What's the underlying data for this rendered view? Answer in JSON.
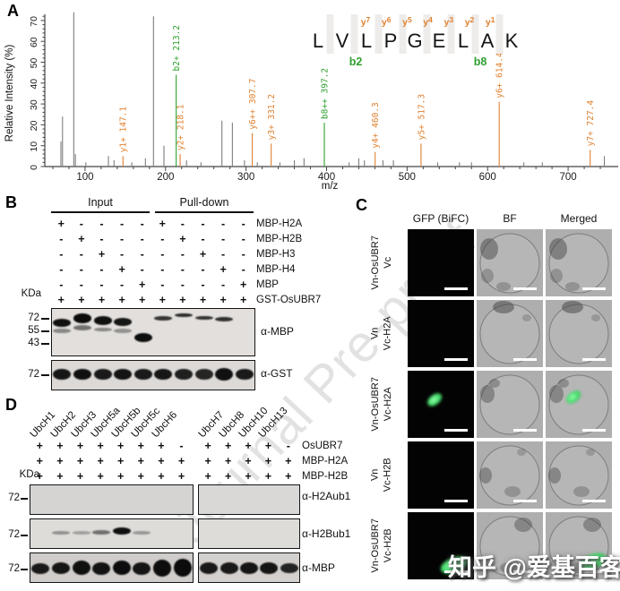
{
  "figure": {
    "watermark_journal": "Journal Pre-proof",
    "watermark_zhihu": "知乎 @爱基百客"
  },
  "panelA": {
    "label": "A",
    "chart_data": {
      "type": "bar",
      "subtype": "ms2-fragmentation-spectrum",
      "xlabel": "m/z",
      "ylabel": "Relative Intensity (%)",
      "xlim": [
        50,
        760
      ],
      "ylim": [
        0,
        75
      ],
      "x_ticks": [
        100,
        200,
        300,
        400,
        500,
        600,
        700
      ],
      "y_ticks": [
        0,
        10,
        20,
        30,
        40,
        50,
        60,
        70
      ],
      "peptide": {
        "residues": [
          "L",
          "V",
          "L",
          "P",
          "G",
          "E",
          "L",
          "A",
          "K"
        ],
        "y_ion_labels": [
          "y7",
          "y6",
          "y5",
          "y4",
          "y3",
          "y2",
          "y1"
        ],
        "b_ion_labels": [
          "b2",
          "b8"
        ]
      },
      "labeled_peaks": [
        {
          "ion": "y1+",
          "mz": 147.1,
          "intensity": 5,
          "series": "y"
        },
        {
          "ion": "b2+",
          "mz": 213.2,
          "intensity": 44,
          "series": "b"
        },
        {
          "ion": "y2+",
          "mz": 218.1,
          "intensity": 6,
          "series": "y"
        },
        {
          "ion": "y6++",
          "mz": 307.7,
          "intensity": 16,
          "series": "y"
        },
        {
          "ion": "y3+",
          "mz": 331.2,
          "intensity": 11,
          "series": "y"
        },
        {
          "ion": "b8++",
          "mz": 397.2,
          "intensity": 21,
          "series": "b"
        },
        {
          "ion": "y4+",
          "mz": 460.3,
          "intensity": 7,
          "series": "y"
        },
        {
          "ion": "y5+",
          "mz": 517.3,
          "intensity": 11,
          "series": "y"
        },
        {
          "ion": "y6+",
          "mz": 614.4,
          "intensity": 31,
          "series": "y"
        },
        {
          "ion": "y7+",
          "mz": 727.4,
          "intensity": 8,
          "series": "y"
        }
      ],
      "background_peaks": [
        [
          70,
          12
        ],
        [
          72,
          24
        ],
        [
          86,
          74
        ],
        [
          88,
          6
        ],
        [
          101,
          2
        ],
        [
          129,
          5
        ],
        [
          136,
          3
        ],
        [
          158,
          2
        ],
        [
          175,
          4
        ],
        [
          185,
          72
        ],
        [
          198,
          10
        ],
        [
          226,
          3
        ],
        [
          244,
          2
        ],
        [
          270,
          22
        ],
        [
          283,
          21
        ],
        [
          298,
          3
        ],
        [
          314,
          2
        ],
        [
          342,
          2
        ],
        [
          360,
          3
        ],
        [
          372,
          4
        ],
        [
          428,
          2
        ],
        [
          440,
          4
        ],
        [
          447,
          3
        ],
        [
          470,
          3
        ],
        [
          483,
          3
        ],
        [
          538,
          2
        ],
        [
          565,
          2
        ],
        [
          580,
          2
        ],
        [
          645,
          2
        ],
        [
          668,
          2
        ],
        [
          745,
          5
        ]
      ],
      "colors": {
        "y_series": "#e0812f",
        "b_series": "#2fa02f",
        "background": "#7d7d7d"
      }
    }
  },
  "panelB": {
    "label": "B",
    "group_headers": [
      "Input",
      "Pull-down"
    ],
    "kda_label": "KDa",
    "condition_rows": [
      {
        "label": "MBP-H2A",
        "values": [
          "+",
          "-",
          "-",
          "-",
          "-",
          "+",
          "-",
          "-",
          "-",
          "-"
        ]
      },
      {
        "label": "MBP-H2B",
        "values": [
          "-",
          "+",
          "-",
          "-",
          "-",
          "-",
          "+",
          "-",
          "-",
          "-"
        ]
      },
      {
        "label": "MBP-H3",
        "values": [
          "-",
          "-",
          "+",
          "-",
          "-",
          "-",
          "-",
          "+",
          "-",
          "-"
        ]
      },
      {
        "label": "MBP-H4",
        "values": [
          "-",
          "-",
          "-",
          "+",
          "-",
          "-",
          "-",
          "-",
          "+",
          "-"
        ]
      },
      {
        "label": "MBP",
        "values": [
          "-",
          "-",
          "-",
          "-",
          "+",
          "-",
          "-",
          "-",
          "-",
          "+"
        ]
      },
      {
        "label": "GST-OsUBR7",
        "values": [
          "+",
          "+",
          "+",
          "+",
          "+",
          "+",
          "+",
          "+",
          "+",
          "+"
        ]
      }
    ],
    "blots": [
      {
        "antibody": "α-MBP",
        "markers": [
          "72",
          "55",
          "43"
        ],
        "bands": [
          {
            "lane": 1,
            "y": 0.21,
            "h": 0.17,
            "o": 0.95
          },
          {
            "lane": 1,
            "y": 0.43,
            "h": 0.09,
            "o": 0.4
          },
          {
            "lane": 2,
            "y": 0.1,
            "h": 0.2,
            "o": 0.97
          },
          {
            "lane": 2,
            "y": 0.35,
            "h": 0.11,
            "o": 0.5
          },
          {
            "lane": 3,
            "y": 0.16,
            "h": 0.18,
            "o": 0.95
          },
          {
            "lane": 3,
            "y": 0.4,
            "h": 0.09,
            "o": 0.4
          },
          {
            "lane": 4,
            "y": 0.2,
            "h": 0.17,
            "o": 0.92
          },
          {
            "lane": 4,
            "y": 0.43,
            "h": 0.09,
            "o": 0.35
          },
          {
            "lane": 5,
            "y": 0.52,
            "h": 0.2,
            "o": 0.96
          },
          {
            "lane": 6,
            "y": 0.16,
            "h": 0.09,
            "o": 0.78
          },
          {
            "lane": 7,
            "y": 0.09,
            "h": 0.09,
            "o": 0.82
          },
          {
            "lane": 8,
            "y": 0.15,
            "h": 0.09,
            "o": 0.8
          },
          {
            "lane": 9,
            "y": 0.17,
            "h": 0.1,
            "o": 0.8
          }
        ]
      },
      {
        "antibody": "α-GST",
        "markers": [
          "72"
        ],
        "bands": [
          {
            "lane": 1,
            "y": 0.27,
            "h": 0.4,
            "o": 0.92
          },
          {
            "lane": 2,
            "y": 0.27,
            "h": 0.4,
            "o": 0.95
          },
          {
            "lane": 3,
            "y": 0.27,
            "h": 0.4,
            "o": 0.9
          },
          {
            "lane": 4,
            "y": 0.27,
            "h": 0.4,
            "o": 0.93
          },
          {
            "lane": 5,
            "y": 0.27,
            "h": 0.4,
            "o": 0.9
          },
          {
            "lane": 6,
            "y": 0.27,
            "h": 0.4,
            "o": 0.92
          },
          {
            "lane": 7,
            "y": 0.27,
            "h": 0.4,
            "o": 0.88
          },
          {
            "lane": 8,
            "y": 0.27,
            "h": 0.4,
            "o": 0.85
          },
          {
            "lane": 9,
            "y": 0.24,
            "h": 0.44,
            "o": 0.95
          },
          {
            "lane": 10,
            "y": 0.27,
            "h": 0.4,
            "o": 0.9
          }
        ]
      }
    ]
  },
  "panelC": {
    "label": "C",
    "column_headers": [
      "GFP (BiFC)",
      "BF",
      "Merged"
    ],
    "colors": {
      "gfp_green": "#4ce472"
    },
    "rows": [
      {
        "construct_top": "Vn-OsUBR7",
        "construct_bottom": "Vc",
        "bifc_positive": false
      },
      {
        "construct_top": "Vn",
        "construct_bottom": "Vc-H2A",
        "bifc_positive": false
      },
      {
        "construct_top": "Vn-OsUBR7",
        "construct_bottom": "Vc-H2A",
        "bifc_positive": true,
        "signal": {
          "gfp": {
            "x": 0.28,
            "y": 0.36,
            "w": 0.24,
            "h": 0.14,
            "rot": -38
          },
          "merged": {
            "x": 0.3,
            "y": 0.32,
            "w": 0.24,
            "h": 0.14,
            "rot": -38
          }
        }
      },
      {
        "construct_top": "Vn",
        "construct_bottom": "Vc-H2B",
        "bifc_positive": false
      },
      {
        "construct_top": "Vn-OsUBR7",
        "construct_bottom": "Vc-H2B",
        "bifc_positive": true,
        "signal": {
          "gfp": {
            "x": 0.48,
            "y": 0.68,
            "w": 0.42,
            "h": 0.21,
            "rot": -22
          },
          "merged": {
            "x": 0.52,
            "y": 0.62,
            "w": 0.4,
            "h": 0.21,
            "rot": -22
          }
        }
      }
    ]
  },
  "panelD": {
    "label": "D",
    "kda_label": "KDa",
    "lane_groups": [
      {
        "labels": [
          "UbcH1",
          "UbcH2",
          "UbcH3",
          "UbcH5a",
          "UbcH5b",
          "UbcH5c",
          "UbcH6"
        ],
        "lanes": 8
      },
      {
        "labels": [
          "UbcH7",
          "UbcH8",
          "UbcH10",
          "UbcH13"
        ],
        "lanes": 5
      }
    ],
    "condition_rows": [
      {
        "label": "OsUBR7",
        "g1": [
          "+",
          "+",
          "+",
          "+",
          "+",
          "+",
          "+",
          "-"
        ],
        "g2": [
          "+",
          "+",
          "+",
          "+",
          "-"
        ]
      },
      {
        "label": "MBP-H2A",
        "g1": [
          "+",
          "+",
          "+",
          "+",
          "+",
          "+",
          "+",
          "+"
        ],
        "g2": [
          "+",
          "+",
          "+",
          "+",
          "+"
        ]
      },
      {
        "label": "MBP-H2B",
        "g1": [
          "+",
          "+",
          "+",
          "+",
          "+",
          "+",
          "+",
          "+"
        ],
        "g2": [
          "+",
          "+",
          "+",
          "+",
          "+"
        ]
      }
    ],
    "blots": [
      {
        "antibody": "α-H2Aub1",
        "marker": "72",
        "bands": []
      },
      {
        "antibody": "α-H2Bub1",
        "marker": "72",
        "bands": [
          {
            "g": 1,
            "lane": 2,
            "y": 0.4,
            "h": 0.12,
            "o": 0.35
          },
          {
            "g": 1,
            "lane": 3,
            "y": 0.42,
            "h": 0.1,
            "o": 0.28
          },
          {
            "g": 1,
            "lane": 4,
            "y": 0.38,
            "h": 0.14,
            "o": 0.5
          },
          {
            "g": 1,
            "lane": 5,
            "y": 0.28,
            "h": 0.26,
            "o": 0.95
          },
          {
            "g": 1,
            "lane": 6,
            "y": 0.4,
            "h": 0.12,
            "o": 0.32
          }
        ]
      },
      {
        "antibody": "α-MBP",
        "marker": "72",
        "bands": [
          {
            "g": 1,
            "lane": 1,
            "y": 0.34,
            "h": 0.38,
            "o": 0.9
          },
          {
            "g": 1,
            "lane": 2,
            "y": 0.32,
            "h": 0.4,
            "o": 0.92
          },
          {
            "g": 1,
            "lane": 3,
            "y": 0.26,
            "h": 0.5,
            "o": 0.95
          },
          {
            "g": 1,
            "lane": 4,
            "y": 0.3,
            "h": 0.45,
            "o": 0.93
          },
          {
            "g": 1,
            "lane": 5,
            "y": 0.24,
            "h": 0.52,
            "o": 0.96
          },
          {
            "g": 1,
            "lane": 6,
            "y": 0.3,
            "h": 0.45,
            "o": 0.92
          },
          {
            "g": 1,
            "lane": 7,
            "y": 0.22,
            "h": 0.58,
            "o": 0.96
          },
          {
            "g": 1,
            "lane": 8,
            "y": 0.2,
            "h": 0.62,
            "o": 0.97
          },
          {
            "g": 2,
            "lane": 1,
            "y": 0.32,
            "h": 0.4,
            "o": 0.9
          },
          {
            "g": 2,
            "lane": 2,
            "y": 0.32,
            "h": 0.4,
            "o": 0.9
          },
          {
            "g": 2,
            "lane": 3,
            "y": 0.3,
            "h": 0.42,
            "o": 0.92
          },
          {
            "g": 2,
            "lane": 4,
            "y": 0.3,
            "h": 0.42,
            "o": 0.92
          },
          {
            "g": 2,
            "lane": 5,
            "y": 0.34,
            "h": 0.36,
            "o": 0.85
          }
        ]
      }
    ]
  }
}
